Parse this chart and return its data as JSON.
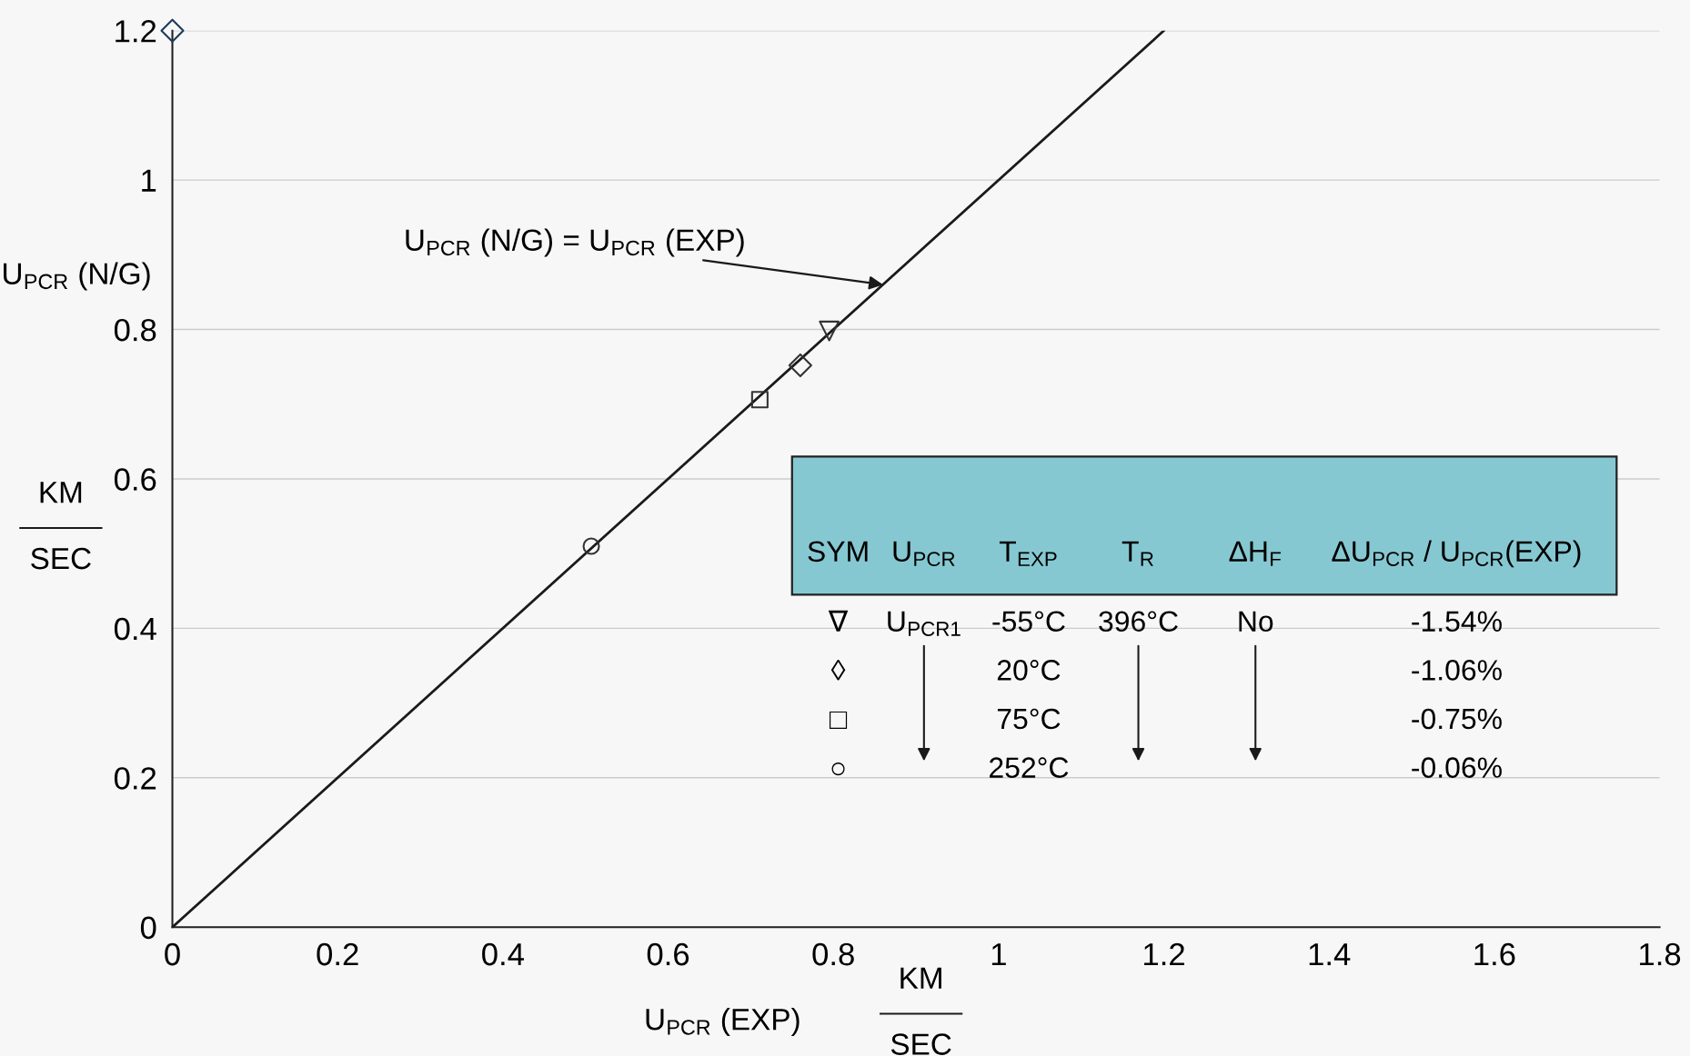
{
  "chart_data": [
    {
      "type": "scatter",
      "xlabel": "U$_{PCR}$ (EXP)",
      "ylabel": "U$_{PCR}$ (N/G)",
      "annotations": [
        {
          "text": "U$_{PCR}$ (N/G) = U$_{PCR}$ (EXP)",
          "x": 0.86,
          "y": 0.86
        },
        "KM",
        "SEC",
        "KM",
        "SEC"
      ],
      "series": [
        {
          "type": "line",
          "color": "#1a1a1a",
          "x": [
            0,
            1.2
          ],
          "values": [
            0,
            1.2
          ],
          "marker": "none"
        },
        {
          "color": "#1f3a5a",
          "x": [
            0
          ],
          "values": [
            1.2
          ],
          "marker": "diamond"
        },
        {
          "color": "#333333",
          "x": [
            0.795
          ],
          "values": [
            0.798
          ],
          "marker": "triangle"
        },
        {
          "color": "#333333",
          "x": [
            0.76
          ],
          "values": [
            0.752
          ],
          "marker": "diamond"
        },
        {
          "color": "#333333",
          "x": [
            0.711
          ],
          "values": [
            0.706
          ],
          "marker": "square"
        },
        {
          "color": "#333333",
          "x": [
            0.507
          ],
          "values": [
            0.51
          ],
          "marker": "circle"
        }
      ],
      "xlim": [
        0,
        1.8
      ],
      "ylim": [
        0,
        1.2
      ],
      "xticks": [
        0,
        0.2,
        0.4,
        0.6,
        0.8,
        1,
        1.2,
        1.4,
        1.6,
        1.8
      ],
      "yticks": [
        0,
        0.2,
        0.4,
        0.6,
        0.8,
        1,
        1.2
      ],
      "grid": "y",
      "legend": false
    },
    {
      "type": "other",
      "categories": [
        "SYM",
        "U$_{PCR}$",
        "T$_{EXP}$",
        "T$_{R}$",
        "ΔH$_{F}$",
        "ΔU$_{PCR}$ / U$_{PCR}$(EXP)"
      ],
      "cell_labels": [
        [
          "∇",
          "U$_{PCR1}$",
          "-55°C",
          "396°C",
          "No",
          "-1.54%"
        ],
        [
          "◊",
          null,
          "20°C",
          null,
          null,
          "-1.06%"
        ],
        [
          "□",
          null,
          "75°C",
          null,
          null,
          "-0.75%"
        ],
        [
          "○",
          null,
          "252°C",
          null,
          null,
          "-0.06%"
        ]
      ]
    }
  ]
}
